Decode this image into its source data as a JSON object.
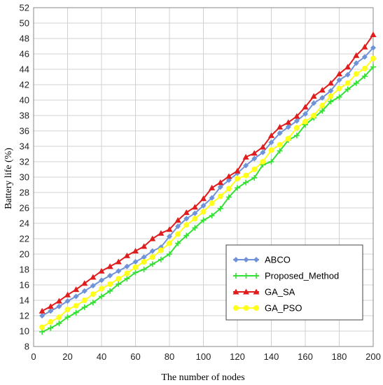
{
  "chart_data": {
    "type": "line",
    "title": "",
    "xlabel": "The number of nodes",
    "ylabel": "Battery life  (%)",
    "xlim": [
      0,
      200
    ],
    "ylim": [
      8,
      52
    ],
    "x_ticks": [
      0,
      20,
      40,
      60,
      80,
      100,
      120,
      140,
      160,
      180,
      200
    ],
    "y_ticks": [
      8,
      10,
      12,
      14,
      16,
      18,
      20,
      22,
      24,
      26,
      28,
      30,
      32,
      34,
      36,
      38,
      40,
      42,
      44,
      46,
      48,
      50,
      52
    ],
    "grid": "both",
    "legend_position": "lower-right",
    "x": [
      5,
      10,
      15,
      20,
      25,
      30,
      35,
      40,
      45,
      50,
      55,
      60,
      65,
      70,
      75,
      80,
      85,
      90,
      95,
      100,
      105,
      110,
      115,
      120,
      125,
      130,
      135,
      140,
      145,
      150,
      155,
      160,
      165,
      170,
      175,
      180,
      185,
      190,
      195,
      200
    ],
    "series": [
      {
        "name": "ABCO",
        "color": "#6f93d8",
        "marker": "diamond",
        "values": [
          12.0,
          12.6,
          13.2,
          13.9,
          14.5,
          15.2,
          15.9,
          16.6,
          17.2,
          17.8,
          18.4,
          19.0,
          19.6,
          20.4,
          20.9,
          22.3,
          23.6,
          24.6,
          25.3,
          26.3,
          27.3,
          28.7,
          29.6,
          30.5,
          31.5,
          32.4,
          33.2,
          34.5,
          35.7,
          36.5,
          37.3,
          38.2,
          39.6,
          40.3,
          41.2,
          42.6,
          43.3,
          44.8,
          45.6,
          46.8
        ]
      },
      {
        "name": "Proposed_Method",
        "color": "#33e033",
        "marker": "plus",
        "values": [
          9.9,
          10.4,
          11.0,
          11.8,
          12.4,
          13.1,
          13.7,
          14.5,
          15.2,
          16.1,
          16.8,
          17.6,
          18.0,
          18.7,
          19.3,
          20.0,
          21.4,
          22.4,
          23.4,
          24.4,
          25.0,
          25.9,
          27.4,
          28.6,
          29.3,
          29.9,
          31.6,
          32.0,
          33.4,
          34.8,
          35.4,
          36.8,
          37.7,
          38.6,
          39.8,
          40.4,
          41.4,
          42.2,
          43.1,
          44.3
        ]
      },
      {
        "name": "GA_SA",
        "color": "#e01c1c",
        "marker": "triangle",
        "values": [
          12.6,
          13.2,
          13.9,
          14.7,
          15.4,
          16.2,
          17.0,
          17.8,
          18.4,
          19.0,
          19.8,
          20.4,
          21.0,
          22.0,
          22.7,
          23.2,
          24.4,
          25.4,
          26.1,
          27.2,
          28.6,
          29.3,
          30.1,
          30.8,
          32.6,
          33.1,
          33.9,
          35.4,
          36.5,
          37.1,
          37.9,
          39.1,
          40.5,
          41.3,
          42.2,
          43.4,
          44.3,
          45.8,
          46.9,
          48.5
        ]
      },
      {
        "name": "GA_PSO",
        "color": "#ffff1a",
        "marker": "circle",
        "values": [
          10.5,
          11.2,
          11.8,
          12.8,
          13.3,
          14.0,
          14.8,
          15.5,
          16.1,
          16.8,
          17.5,
          18.3,
          19.0,
          19.6,
          20.5,
          21.4,
          22.6,
          23.8,
          24.6,
          25.5,
          26.6,
          27.5,
          28.5,
          29.8,
          30.2,
          31.0,
          32.0,
          33.5,
          34.2,
          35.0,
          36.4,
          37.2,
          38.0,
          39.3,
          40.5,
          41.5,
          42.2,
          43.4,
          44.1,
          45.4
        ]
      }
    ]
  }
}
